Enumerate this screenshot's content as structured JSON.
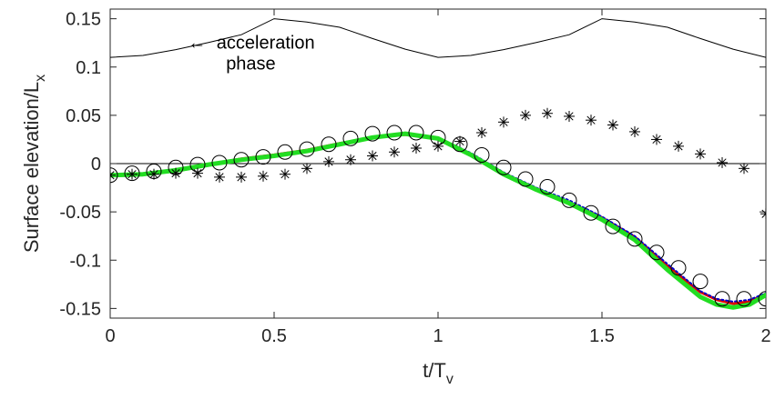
{
  "chart_data": {
    "type": "line",
    "xlabel": "t/T",
    "xlabel_sub": "v",
    "ylabel": "Surface elevation/L",
    "ylabel_sub": "x",
    "xlim": [
      0,
      2
    ],
    "ylim": [
      -0.16,
      0.16
    ],
    "x_ticks": [
      0,
      0.5,
      1,
      1.5,
      2
    ],
    "x_tick_labels": [
      "0",
      "0.5",
      "1",
      "1.5",
      "2"
    ],
    "y_ticks": [
      0.15,
      0.1,
      0.05,
      0,
      -0.05,
      -0.1,
      -0.15
    ],
    "y_tick_labels": [
      "0.15",
      "0.1",
      "0.05",
      "0",
      "-0.05",
      "-0.1",
      "-0.15"
    ],
    "grid": false,
    "annotation": {
      "line1": "acceleration",
      "line2": "phase",
      "arrow": "←",
      "x": 0.22,
      "y": 0.117
    },
    "forcing": {
      "x": [
        0,
        0.1,
        0.2,
        0.3,
        0.4,
        0.5,
        0.6,
        0.7,
        0.8,
        0.9,
        1.0,
        1.1,
        1.2,
        1.3,
        1.4,
        1.5,
        1.6,
        1.7,
        1.8,
        1.9,
        2.0
      ],
      "y": [
        0.11,
        0.112,
        0.118,
        0.1255,
        0.1335,
        0.15,
        0.1465,
        0.1412,
        0.1295,
        0.1185,
        0.11,
        0.112,
        0.118,
        0.1255,
        0.1335,
        0.15,
        0.1465,
        0.1412,
        0.1295,
        0.1185,
        0.11
      ],
      "color": "#000000"
    },
    "series": [
      {
        "x": [
          0,
          0.1,
          0.2,
          0.3,
          0.4,
          0.5,
          0.6,
          0.7,
          0.8,
          0.9,
          1.0,
          1.1,
          1.2,
          1.3,
          1.4,
          1.5,
          1.6,
          1.7,
          1.8,
          1.85,
          1.9,
          1.95,
          2.0
        ],
        "y": [
          -0.012,
          -0.011,
          -0.007,
          -0.001,
          0.005,
          0.009,
          0.014,
          0.021,
          0.027,
          0.03,
          0.026,
          0.01,
          -0.01,
          -0.026,
          -0.04,
          -0.056,
          -0.076,
          -0.106,
          -0.133,
          -0.141,
          -0.145,
          -0.143,
          -0.135
        ],
        "color": "#dd0000",
        "width": 3,
        "style": "line"
      },
      {
        "x": [
          0,
          0.1,
          0.2,
          0.3,
          0.4,
          0.5,
          0.6,
          0.7,
          0.8,
          0.9,
          1.0,
          1.1,
          1.2,
          1.3,
          1.4,
          1.5,
          1.6,
          1.7,
          1.8,
          1.85,
          1.9,
          1.95,
          2.0
        ],
        "y": [
          -0.012,
          -0.011,
          -0.007,
          -0.002,
          0.004,
          0.008,
          0.013,
          0.02,
          0.026,
          0.03,
          0.027,
          0.011,
          -0.009,
          -0.025,
          -0.038,
          -0.055,
          -0.075,
          -0.104,
          -0.132,
          -0.14,
          -0.143,
          -0.141,
          -0.134
        ],
        "color": "#0000cc",
        "width": 2,
        "style": "dotted"
      },
      {
        "x": [
          0,
          0.1,
          0.2,
          0.3,
          0.4,
          0.5,
          0.6,
          0.7,
          0.8,
          0.9,
          1.0,
          1.1,
          1.2,
          1.3,
          1.4,
          1.5,
          1.6,
          1.7,
          1.8,
          1.85,
          1.9,
          1.95,
          2.0
        ],
        "y": [
          -0.012,
          -0.011,
          -0.007,
          -0.001,
          0.004,
          0.008,
          0.013,
          0.02,
          0.027,
          0.031,
          0.026,
          0.009,
          -0.011,
          -0.027,
          -0.041,
          -0.058,
          -0.079,
          -0.11,
          -0.138,
          -0.146,
          -0.149,
          -0.146,
          -0.136
        ],
        "color": "#22dd22",
        "width": 5,
        "style": "line"
      },
      {
        "x": [
          0,
          0.0667,
          0.1333,
          0.2,
          0.2667,
          0.3333,
          0.4,
          0.4667,
          0.5333,
          0.6,
          0.6667,
          0.7333,
          0.8,
          0.8667,
          0.9333,
          1.0,
          1.0667,
          1.1333,
          1.2,
          1.2667,
          1.3333,
          1.4,
          1.4667,
          1.5333,
          1.6,
          1.6667,
          1.7333,
          1.8,
          1.8667,
          1.9333,
          2.0
        ],
        "y": [
          -0.012,
          -0.01,
          -0.008,
          -0.004,
          -0.001,
          0.001,
          0.004,
          0.007,
          0.012,
          0.015,
          0.02,
          0.026,
          0.031,
          0.032,
          0.032,
          0.027,
          0.02,
          0.009,
          -0.004,
          -0.016,
          -0.024,
          -0.038,
          -0.051,
          -0.065,
          -0.078,
          -0.092,
          -0.108,
          -0.122,
          -0.14,
          -0.14,
          -0.14
        ],
        "color": "#000000",
        "style": "marker-circle"
      },
      {
        "x": [
          0,
          0.0667,
          0.1333,
          0.2,
          0.2667,
          0.3333,
          0.4,
          0.4667,
          0.5333,
          0.6,
          0.6667,
          0.7333,
          0.8,
          0.8667,
          0.9333,
          1.0,
          1.0667,
          1.1333,
          1.2,
          1.2667,
          1.3333,
          1.4,
          1.4667,
          1.5333,
          1.6,
          1.6667,
          1.7333,
          1.8,
          1.8667,
          1.9333,
          2.0
        ],
        "y": [
          -0.012,
          -0.011,
          -0.011,
          -0.01,
          -0.01,
          -0.014,
          -0.014,
          -0.013,
          -0.011,
          -0.005,
          0.002,
          0.004,
          0.008,
          0.012,
          0.016,
          0.018,
          0.023,
          0.032,
          0.043,
          0.05,
          0.052,
          0.049,
          0.045,
          0.04,
          0.033,
          0.025,
          0.018,
          0.01,
          0.001,
          -0.005,
          -0.052
        ],
        "color": "#000000",
        "style": "marker-asterisk"
      }
    ]
  }
}
